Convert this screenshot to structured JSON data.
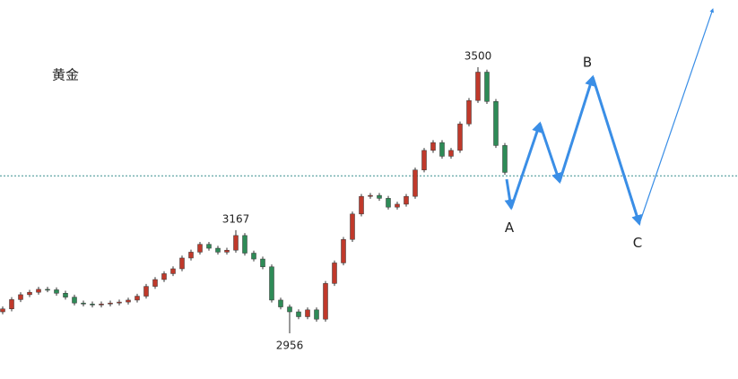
{
  "chart_data": {
    "type": "candlestick",
    "title": "黄金",
    "x": [
      0,
      1,
      2,
      3,
      4,
      5,
      6,
      7,
      8,
      9,
      10,
      11,
      12,
      13,
      14,
      15,
      16,
      17,
      18,
      19,
      20,
      21,
      22,
      23,
      24,
      25,
      26,
      27,
      28,
      29,
      30,
      31,
      32,
      33,
      34,
      35,
      36,
      37,
      38,
      39,
      40,
      41,
      42,
      43,
      44,
      45,
      46,
      47,
      48,
      49,
      50,
      51,
      52,
      53,
      54,
      55,
      56
    ],
    "open": [
      3000,
      3006,
      3025,
      3035,
      3040,
      3046,
      3045,
      3038,
      3030,
      3018,
      3016,
      3014,
      3016,
      3018,
      3020,
      3024,
      3032,
      3052,
      3066,
      3078,
      3088,
      3110,
      3122,
      3138,
      3130,
      3122,
      3126,
      3156,
      3120,
      3108,
      3092,
      3024,
      3010,
      3000,
      2990,
      3004,
      2985,
      3058,
      3100,
      3148,
      3200,
      3236,
      3238,
      3232,
      3214,
      3220,
      3236,
      3290,
      3330,
      3346,
      3318,
      3330,
      3384,
      3432,
      3490,
      3430,
      3340
    ],
    "high": [
      3011,
      3030,
      3040,
      3045,
      3051,
      3051,
      3050,
      3043,
      3035,
      3023,
      3021,
      3021,
      3023,
      3025,
      3029,
      3037,
      3057,
      3071,
      3083,
      3093,
      3115,
      3127,
      3143,
      3143,
      3135,
      3131,
      3167,
      3161,
      3125,
      3113,
      3097,
      3029,
      3015,
      3005,
      3009,
      3009,
      3063,
      3105,
      3153,
      3205,
      3241,
      3243,
      3243,
      3237,
      3225,
      3241,
      3295,
      3335,
      3351,
      3351,
      3335,
      3389,
      3437,
      3500,
      3495,
      3435,
      3345
    ],
    "low": [
      2995,
      3001,
      3020,
      3030,
      3035,
      3040,
      3033,
      3025,
      3013,
      3011,
      3009,
      3009,
      3011,
      3013,
      3015,
      3019,
      3027,
      3047,
      3061,
      3073,
      3083,
      3105,
      3117,
      3125,
      3117,
      3117,
      3121,
      3115,
      3103,
      3087,
      3019,
      3005,
      2956,
      2985,
      2985,
      2980,
      2980,
      3053,
      3095,
      3143,
      3195,
      3231,
      3227,
      3209,
      3209,
      3215,
      3231,
      3285,
      3325,
      3313,
      3313,
      3325,
      3379,
      3427,
      3425,
      3335,
      3280
    ],
    "close": [
      3006,
      3025,
      3035,
      3040,
      3046,
      3045,
      3038,
      3030,
      3018,
      3016,
      3014,
      3016,
      3018,
      3020,
      3024,
      3032,
      3052,
      3066,
      3078,
      3088,
      3110,
      3122,
      3138,
      3130,
      3122,
      3126,
      3156,
      3120,
      3108,
      3092,
      3024,
      3010,
      3000,
      2990,
      3004,
      2985,
      3058,
      3100,
      3148,
      3200,
      3236,
      3238,
      3232,
      3214,
      3220,
      3236,
      3290,
      3330,
      3346,
      3318,
      3330,
      3384,
      3432,
      3490,
      3430,
      3340,
      3285
    ],
    "up_color": "#c0392b",
    "down_color": "#2e8b57",
    "xlim": [
      -0.3,
      82
    ],
    "ylim": [
      2870,
      3640
    ],
    "ref_line": 3278,
    "ref_color": "#3a8f8f",
    "wave_color": "#3a8ee6",
    "wave_points": [
      {
        "x": 56.2,
        "y": 3271
      },
      {
        "x": 56.7,
        "y": 3212,
        "label": "A"
      },
      {
        "x": 59.9,
        "y": 3385
      },
      {
        "x": 62.1,
        "y": 3266
      },
      {
        "x": 65.8,
        "y": 3480,
        "label": "B"
      },
      {
        "x": 71.0,
        "y": 3180,
        "label": "C"
      },
      {
        "x": 79.2,
        "y": 3619
      }
    ]
  }
}
